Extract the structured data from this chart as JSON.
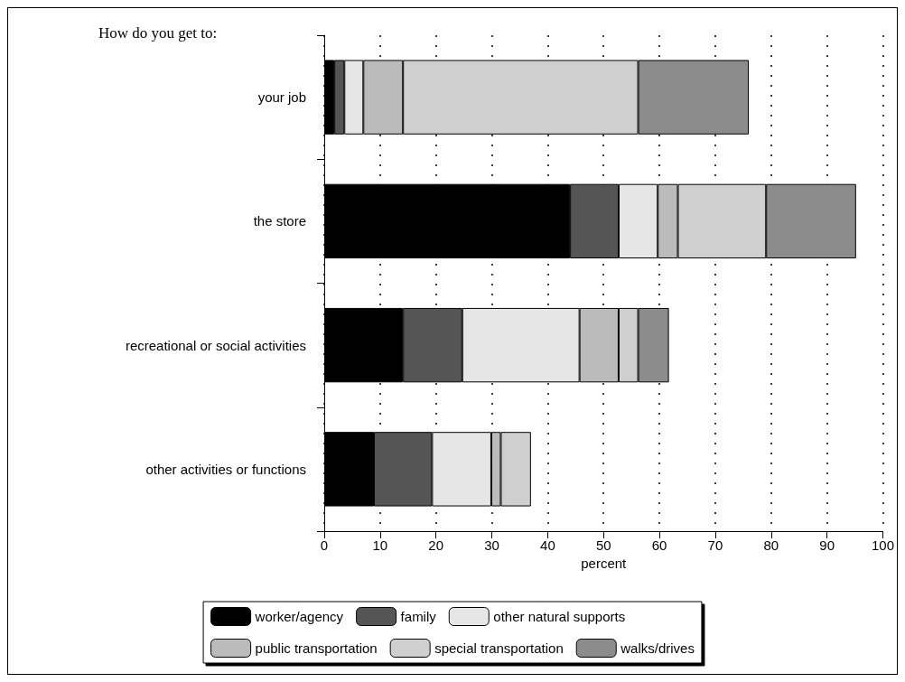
{
  "chart_data": {
    "type": "bar",
    "orientation": "horizontal",
    "stacked": true,
    "title": "How do you get to:",
    "xlabel": "percent",
    "categories": [
      "your job",
      "the store",
      "recreational or social activities",
      "other activities or functions"
    ],
    "series": [
      {
        "name": "worker/agency",
        "color": "#000000",
        "values": [
          1.8,
          44.0,
          14.1,
          8.9
        ]
      },
      {
        "name": "family",
        "color": "#555555",
        "values": [
          1.8,
          8.7,
          10.6,
          10.4
        ]
      },
      {
        "name": "other natural supports",
        "color": "#e6e6e6",
        "values": [
          3.4,
          7.0,
          21.0,
          10.6
        ]
      },
      {
        "name": "public transportation",
        "color": "#bbbbbb",
        "values": [
          7.1,
          3.6,
          7.0,
          1.7
        ]
      },
      {
        "name": "special transportation",
        "color": "#cfcfcf",
        "values": [
          42.1,
          15.8,
          3.5,
          5.4
        ]
      },
      {
        "name": "walks/drives",
        "color": "#8c8c8c",
        "values": [
          19.8,
          16.1,
          5.5,
          null
        ]
      }
    ],
    "xlim": [
      0,
      100
    ],
    "xticks": [
      0,
      10,
      20,
      30,
      40,
      50,
      60,
      70,
      80,
      90,
      100
    ],
    "grid": "x",
    "legend": "bottom"
  }
}
